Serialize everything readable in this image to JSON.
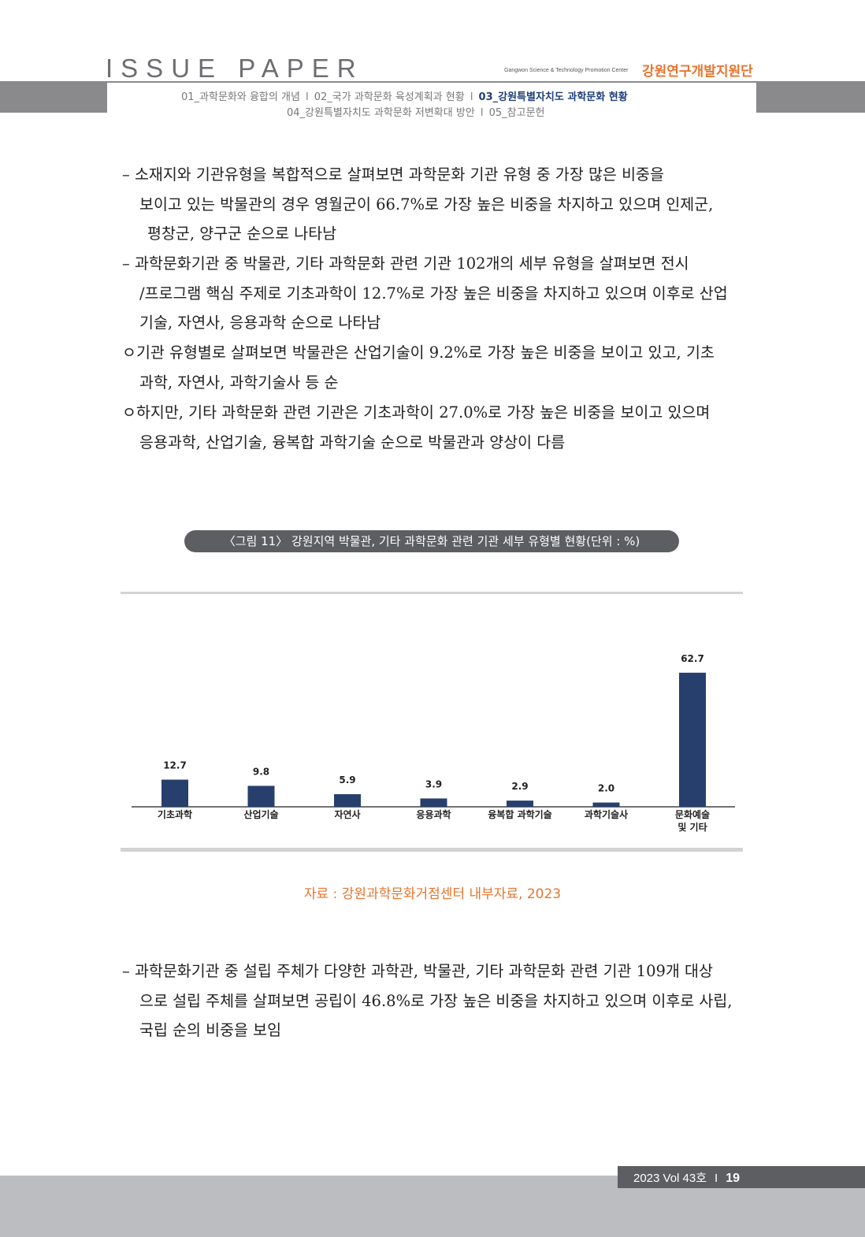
{
  "header": {
    "brand_title": "ISSUE PAPER",
    "org_en": "Gangwon Science & Technology Promotion Center",
    "org_kr": "강원연구개발지원단",
    "nav_row1": [
      "01_과학문화와 융합의 개념",
      "02_국가 과학문화 육성계획과 현황",
      "03_강원특별자치도 과학문화 현황"
    ],
    "nav_row2": [
      "04_강원특별자치도 과학문화 저변확대 방안",
      "05_참고문헌"
    ],
    "separator": "I"
  },
  "body": {
    "para1": [
      "– 소재지와 기관유형을 복합적으로 살펴보면 과학문화 기관 유형 중 가장 많은 비중을",
      "보이고 있는 박물관의 경우 영월군이 66.7%로 가장 높은 비중을 차지하고 있으며 인제군,",
      "평창군, 양구군 순으로 나타남"
    ],
    "para2": [
      "– 과학문화기관 중 박물관, 기타 과학문화 관련 기관 102개의 세부 유형을 살펴보면 전시",
      "/프로그램 핵심 주제로 기초과학이 12.7%로 가장 높은 비중을 차지하고 있으며 이후로 산업",
      "기술, 자연사, 응용과학 순으로 나타남"
    ],
    "para3": [
      "ㅇ기관 유형별로 살펴보면 박물관은 산업기술이 9.2%로 가장 높은 비중을 보이고 있고, 기초",
      "과학, 자연사, 과학기술사 등 순"
    ],
    "para4": [
      "ㅇ하지만, 기타 과학문화 관련 기관은 기초과학이 27.0%로 가장 높은 비중을 보이고 있으며",
      "응용과학, 산업기술, 융복합 과학기술 순으로 박물관과 양상이 다름"
    ],
    "para5": [
      "– 과학문화기관 중 설립 주체가 다양한 과학관, 박물관, 기타 과학문화 관련 기관 109개 대상",
      "으로 설립 주체를 살펴보면 공립이 46.8%로 가장 높은 비중을 차지하고 있으며 이후로 사립,",
      "국립 순의 비중을 보임"
    ]
  },
  "figure": {
    "caption": "〈그림 11〉 강원지역 박물관, 기타 과학문화 관련 기관 세부 유형별 현황(단위 : %)",
    "source": "자료 : 강원과학문화거점센터 내부자료, 2023"
  },
  "chart_data": {
    "type": "bar",
    "categories": [
      "기초과학",
      "산업기술",
      "자연사",
      "응용과학",
      "융복합 과학기술",
      "과학기술사",
      "문화예술\n및 기타"
    ],
    "values": [
      12.7,
      9.8,
      5.9,
      3.9,
      2.9,
      2.0,
      62.7
    ],
    "value_labels": [
      "12.7",
      "9.8",
      "5.9",
      "3.9",
      "2.9",
      "2.0",
      "62.7"
    ],
    "ylim": [
      0,
      70
    ],
    "bar_color": "#273f6c",
    "grid": false,
    "legend": "none"
  },
  "footer": {
    "issue": "2023 Vol 43호",
    "separator": "I",
    "page": "19"
  }
}
